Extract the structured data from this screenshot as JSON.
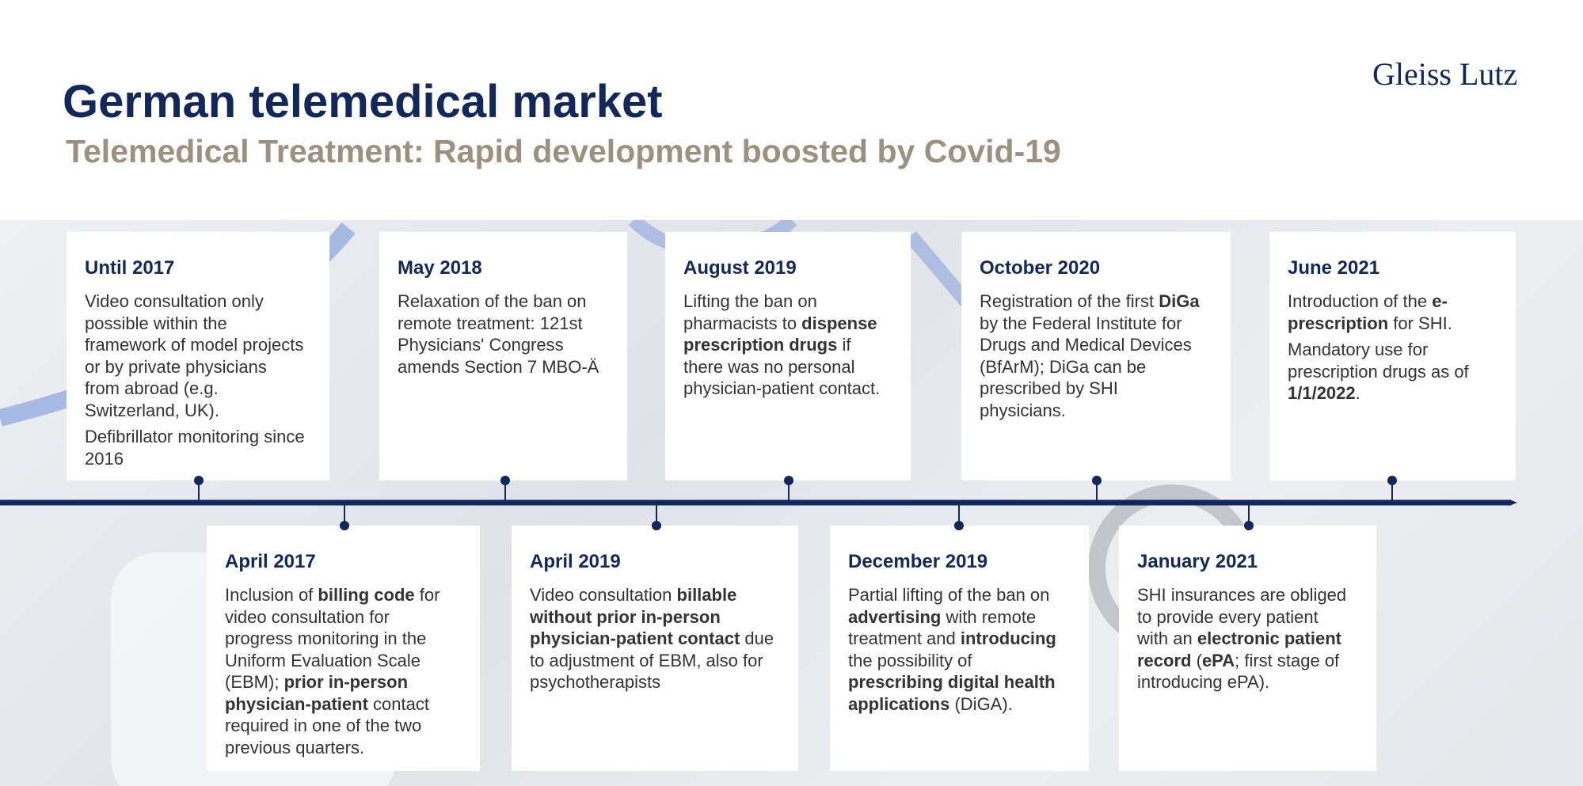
{
  "header": {
    "title": "German telemedical market",
    "subtitle": "Telemedical Treatment: Rapid development boosted by Covid-19",
    "logo": "Gleiss Lutz"
  },
  "timeline": [
    {
      "date": "Until 2017",
      "body": [
        [
          {
            "text": "Video consultation only possible within the framework of model projects or by private physicians from abroad (e.g. Switzerland, UK).",
            "bold": false
          }
        ],
        [
          {
            "text": "Defibrillator monitoring since 2016",
            "bold": false
          }
        ]
      ]
    },
    {
      "date": "April 2017",
      "body": [
        [
          {
            "text": "Inclusion of ",
            "bold": false
          },
          {
            "text": "billing code",
            "bold": true
          },
          {
            "text": " for video consultation for progress monitoring in the Uniform Evaluation Scale (EBM); ",
            "bold": false
          },
          {
            "text": "prior in-person physician-patient",
            "bold": true
          },
          {
            "text": " contact required in one of the two previous quarters.",
            "bold": false
          }
        ]
      ]
    },
    {
      "date": "May 2018",
      "body": [
        [
          {
            "text": "Relaxation of the ban on remote treatment: 121st Physicians' Congress amends Section 7 MBO-Ä",
            "bold": false
          }
        ]
      ]
    },
    {
      "date": "April 2019",
      "body": [
        [
          {
            "text": "Video consultation ",
            "bold": false
          },
          {
            "text": "billable without prior in-person physician-patient contact",
            "bold": true
          },
          {
            "text": " due to adjustment of EBM, also for psychotherapists",
            "bold": false
          }
        ]
      ]
    },
    {
      "date": "August 2019",
      "body": [
        [
          {
            "text": "Lifting the ban on pharmacists to ",
            "bold": false
          },
          {
            "text": "dispense prescription drugs",
            "bold": true
          },
          {
            "text": " if there was no personal physician-patient contact.",
            "bold": false
          }
        ]
      ]
    },
    {
      "date": "December 2019",
      "body": [
        [
          {
            "text": "Partial lifting of the ban on ",
            "bold": false
          },
          {
            "text": "advertising",
            "bold": true
          },
          {
            "text": " with remote treatment and ",
            "bold": false
          },
          {
            "text": "introducing",
            "bold": true
          },
          {
            "text": " the possibility of ",
            "bold": false
          },
          {
            "text": "prescribing digital health applications",
            "bold": true
          },
          {
            "text": " (DiGA).",
            "bold": false
          }
        ]
      ]
    },
    {
      "date": "October 2020",
      "body": [
        [
          {
            "text": "Registration of the first ",
            "bold": false
          },
          {
            "text": "DiGa",
            "bold": true
          },
          {
            "text": " by the Federal Institute for Drugs and Medical Devices (BfArM); DiGa can be prescribed by SHI physicians.",
            "bold": false
          }
        ]
      ]
    },
    {
      "date": "January 2021",
      "body": [
        [
          {
            "text": "SHI insurances are obliged to provide every patient with an ",
            "bold": false
          },
          {
            "text": "electronic patient record",
            "bold": true
          },
          {
            "text": " (",
            "bold": false
          },
          {
            "text": "ePA",
            "bold": true
          },
          {
            "text": "; first stage of introducing ePA).",
            "bold": false
          }
        ]
      ]
    },
    {
      "date": "June 2021",
      "body": [
        [
          {
            "text": "Introduction of the ",
            "bold": false
          },
          {
            "text": "e-prescription",
            "bold": true
          },
          {
            "text": " for SHI.",
            "bold": false
          }
        ],
        [
          {
            "text": "Mandatory use for prescription drugs as of ",
            "bold": false
          },
          {
            "text": "1/1/2022",
            "bold": true
          },
          {
            "text": ".",
            "bold": false
          }
        ]
      ]
    }
  ]
}
